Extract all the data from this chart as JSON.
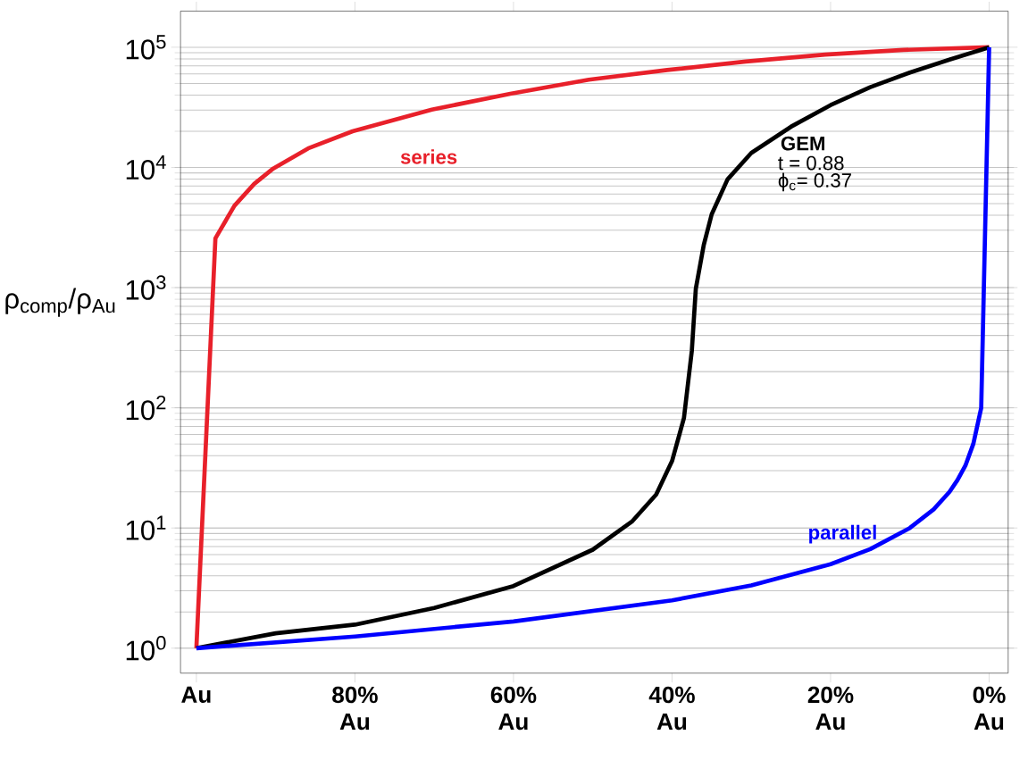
{
  "chart_data": {
    "type": "line",
    "ylabel": "ρ$_{comp}$/ρ$_{Au}$",
    "x": [
      100,
      97.6,
      95.2,
      92.7,
      90.3,
      85.9,
      80.3,
      70.3,
      60.4,
      50.5,
      40.6,
      30.7,
      20.7,
      10.8,
      0
    ],
    "series": [
      {
        "name": "series",
        "color": "#e8202a",
        "values": [
          1,
          2570,
          4800,
          7300,
          9800,
          14400,
          20000,
          30300,
          41000,
          53700,
          64600,
          76000,
          87000,
          95000,
          100000
        ]
      },
      {
        "name": "GEM",
        "color": "#000000",
        "x": [
          100,
          90,
          80,
          70,
          60,
          50,
          45,
          42,
          40,
          38.5,
          37.5,
          37,
          36,
          35,
          33,
          30,
          25,
          20,
          15,
          10,
          5,
          0
        ],
        "values": [
          1,
          1.33,
          1.57,
          2.16,
          3.29,
          6.6,
          11.4,
          19,
          36,
          82,
          300,
          980,
          2260,
          4070,
          7950,
          13200,
          21800,
          33000,
          46500,
          61500,
          79000,
          100000
        ]
      },
      {
        "name": "parallel",
        "color": "#0000ff",
        "x": [
          100,
          80,
          60,
          40,
          30,
          20,
          15,
          10,
          7,
          5,
          4,
          3,
          2,
          1,
          0
        ],
        "values": [
          1,
          1.25,
          1.67,
          2.5,
          3.33,
          5,
          6.67,
          10,
          14.3,
          20,
          25,
          33,
          50,
          100,
          100000
        ]
      }
    ],
    "annotations": [
      "t = 0.88",
      "ϕ$_{c}$= 0.37"
    ],
    "log": "y",
    "grid": "y",
    "legend": false,
    "marker": "none",
    "line_style": "solid",
    "xlim": [
      102,
      -2.4
    ],
    "ylim": [
      0.62,
      200000
    ],
    "xticks": [
      {
        "value": 100,
        "label": "Au"
      },
      {
        "value": 80,
        "label": "80% Au"
      },
      {
        "value": 60,
        "label": "60% Au"
      },
      {
        "value": 40,
        "label": "40% Au"
      },
      {
        "value": 20,
        "label": "20% Au"
      },
      {
        "value": 0,
        "label": "0% Au"
      }
    ],
    "yticks": [
      {
        "value": 1,
        "label": "10$^{0}$"
      },
      {
        "value": 10,
        "label": "10$^{1}$"
      },
      {
        "value": 100,
        "label": "10$^{2}$"
      },
      {
        "value": 1000,
        "label": "10$^{3}$"
      },
      {
        "value": 10000,
        "label": "10$^{4}$"
      },
      {
        "value": 100000,
        "label": "10$^{5}$"
      }
    ]
  }
}
